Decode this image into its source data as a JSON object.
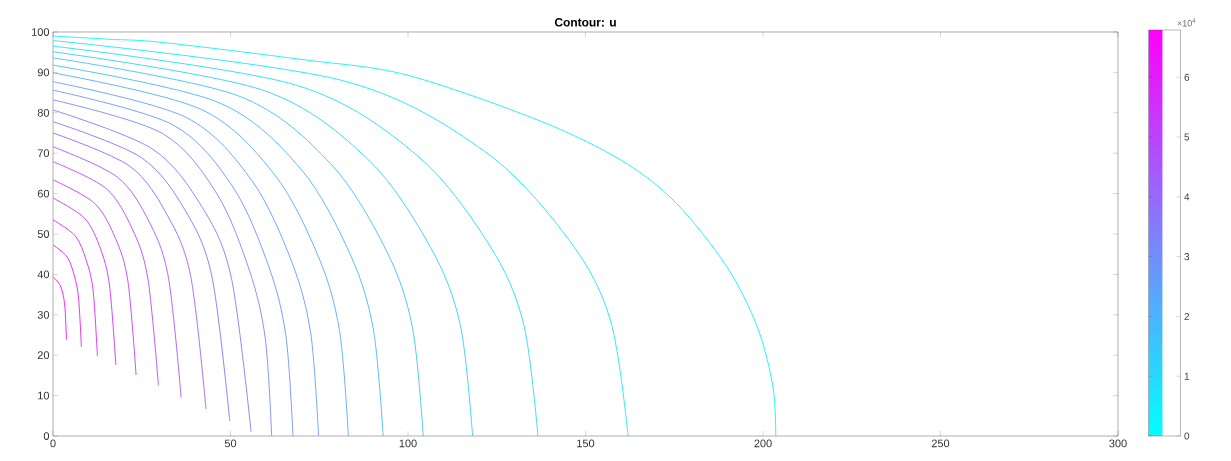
{
  "chart_data": {
    "type": "line",
    "title": "Contour: u",
    "xlim": [
      0,
      300
    ],
    "ylim": [
      0,
      100
    ],
    "xticks": [
      0,
      50,
      100,
      150,
      200,
      250,
      300
    ],
    "yticks": [
      0,
      10,
      20,
      30,
      40,
      50,
      60,
      70,
      80,
      90,
      100
    ],
    "clim": [
      0,
      6.79
    ],
    "cticks": [
      0,
      1,
      2,
      3,
      4,
      5,
      6
    ],
    "annotations": [
      "×10$^{4}$"
    ],
    "series": [
      {
        "color": "#0cf3ff",
        "x": [
          0,
          15.9,
          31,
          71,
          99.5,
          136.6,
          160,
          175.5,
          189.8,
          198.4,
          202.8,
          203.6
        ],
        "values": [
          99,
          98.2,
          97.4,
          93.1,
          89.4,
          78.2,
          68.3,
          57.7,
          41.9,
          27,
          12.2,
          0
        ]
      },
      {
        "color": "#18e7ff",
        "x": [
          0,
          81,
          121.5,
          145.8,
          157.1,
          162
        ],
        "values": [
          97.9,
          88.1,
          70.5,
          48,
          28.4,
          0
        ]
      },
      {
        "color": "#24dbff",
        "x": [
          0,
          68.3,
          102.5,
          122.9,
          132.5,
          136.6
        ],
        "values": [
          96.5,
          86.9,
          69.5,
          47.3,
          28,
          0
        ]
      },
      {
        "color": "#31ceff",
        "x": [
          0,
          59.1,
          88.7,
          106.4,
          114.7,
          118.2
        ],
        "values": [
          95.1,
          85.6,
          68.5,
          46.6,
          27.6,
          0
        ]
      },
      {
        "color": "#3dc2ff",
        "x": [
          0,
          52.2,
          78.2,
          93.9,
          101.2,
          104.3
        ],
        "values": [
          93.6,
          84.2,
          67.4,
          45.9,
          27.1,
          0
        ]
      },
      {
        "color": "#49b6ff",
        "x": [
          0,
          46.5,
          69.8,
          83.7,
          90.2,
          93
        ],
        "values": [
          91.8,
          82.6,
          66.1,
          45,
          26.6,
          0
        ]
      },
      {
        "color": "#55aaff",
        "x": [
          0,
          41.6,
          62.4,
          74.9,
          80.7,
          83.2
        ],
        "values": [
          89.9,
          80.9,
          64.7,
          44.1,
          26.1,
          0
        ]
      },
      {
        "color": "#619eff",
        "x": [
          0,
          37.4,
          56.1,
          67.3,
          72.6,
          74.8
        ],
        "values": [
          87.7,
          78.9,
          63.1,
          43,
          25.4,
          0
        ]
      },
      {
        "color": "#6d92ff",
        "x": [
          0,
          33.8,
          50.7,
          60.8,
          65.6,
          67.6
        ],
        "values": [
          85.6,
          77,
          61.6,
          41.9,
          24.8,
          0
        ]
      },
      {
        "color": "#7986ff",
        "x": [
          0,
          30.8,
          46.2,
          55.4,
          59.8,
          61.6
        ],
        "values": [
          83.2,
          74.9,
          59.9,
          40.8,
          24.1,
          0
        ]
      },
      {
        "color": "#8679ff",
        "x": [
          0,
          27.9,
          41.9,
          50.2,
          55.8
        ],
        "values": [
          80.7,
          71.1,
          56.8,
          39.3,
          1
        ]
      },
      {
        "color": "#926dff",
        "x": [
          0,
          24.9,
          37.4,
          44.8,
          49.8
        ],
        "values": [
          77.8,
          68.9,
          55.6,
          39.3,
          3.7
        ]
      },
      {
        "color": "#9e61ff",
        "x": [
          0,
          21.6,
          32.3,
          38.8,
          43.1
        ],
        "values": [
          75,
          66.8,
          54.5,
          39.5,
          6.7
        ]
      },
      {
        "color": "#aa55ff",
        "x": [
          0,
          18.1,
          27.1,
          32.5,
          36.1
        ],
        "values": [
          71.6,
          64.1,
          53,
          39.3,
          9.5
        ]
      },
      {
        "color": "#b649ff",
        "x": [
          0,
          14.9,
          22.3,
          26.7,
          29.7
        ],
        "values": [
          67.9,
          61.3,
          51.3,
          39.1,
          12.5
        ]
      },
      {
        "color": "#c23dff",
        "x": [
          0,
          11.7,
          17.6,
          21.1,
          23.4
        ],
        "values": [
          63.4,
          57.6,
          48.9,
          38.3,
          15.1
        ]
      },
      {
        "color": "#ce31ff",
        "x": [
          0,
          8.9,
          13.3,
          15.9,
          17.7
        ],
        "values": [
          58.9,
          53.9,
          46.5,
          37.4,
          17.6
        ]
      },
      {
        "color": "#db24ff",
        "x": [
          0,
          6.3,
          9.4,
          11.3,
          12.5
        ],
        "values": [
          53.5,
          49.5,
          43.4,
          36,
          19.8
        ]
      },
      {
        "color": "#e718ff",
        "x": [
          0,
          4,
          6,
          7.2,
          8
        ],
        "values": [
          47.3,
          44.3,
          39.7,
          34.1,
          22
        ]
      },
      {
        "color": "#f30cff",
        "x": [
          0,
          1.9,
          2.9,
          3.4,
          3.8
        ],
        "values": [
          39.4,
          37.5,
          34.7,
          31.3,
          23.8
        ]
      }
    ]
  }
}
